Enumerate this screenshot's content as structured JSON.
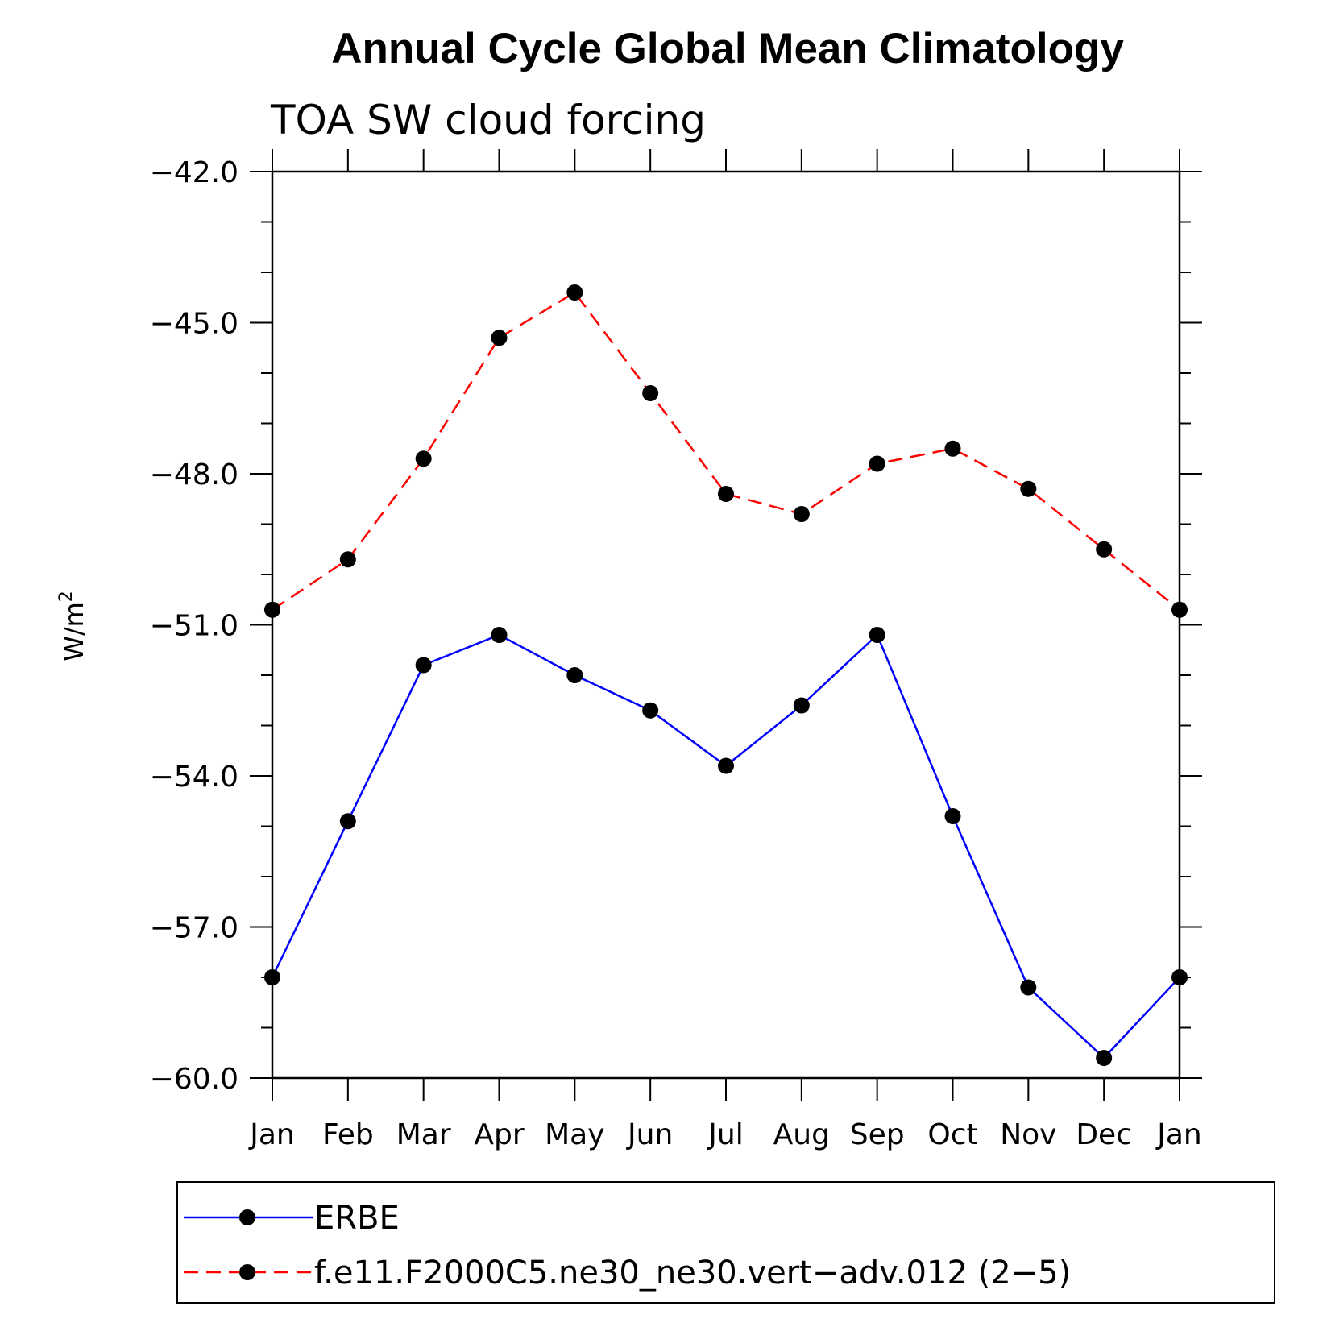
{
  "chart_data": {
    "type": "line",
    "title": "Annual Cycle Global Mean Climatology",
    "subtitle": "TOA SW cloud forcing",
    "ylabel": "W/m",
    "ylabel_sup": "2",
    "xlabel": "",
    "categories": [
      "Jan",
      "Feb",
      "Mar",
      "Apr",
      "May",
      "Jun",
      "Jul",
      "Aug",
      "Sep",
      "Oct",
      "Nov",
      "Dec",
      "Jan"
    ],
    "ylim": [
      -60.0,
      -42.0
    ],
    "yticks": [
      "-42.0",
      "-45.0",
      "-48.0",
      "-51.0",
      "-54.0",
      "-57.0",
      "-60.0"
    ],
    "grid": false,
    "legend_position": "bottom",
    "series": [
      {
        "name": "ERBE",
        "color": "#0000ff",
        "style": "solid",
        "marker": "filled-circle",
        "values": [
          -58.0,
          -54.9,
          -51.8,
          -51.2,
          -52.0,
          -52.7,
          -53.8,
          -52.6,
          -51.2,
          -54.8,
          -58.2,
          -59.6,
          -58.0
        ]
      },
      {
        "name": "f.e11.F2000C5.ne30_ne30.vert-adv.012 (2-5)",
        "color": "#ff0000",
        "style": "dashed",
        "marker": "filled-circle",
        "values": [
          -50.7,
          -49.7,
          -47.7,
          -45.3,
          -44.4,
          -46.4,
          -48.4,
          -48.8,
          -47.8,
          -47.5,
          -48.3,
          -49.5,
          -50.7
        ]
      }
    ]
  }
}
